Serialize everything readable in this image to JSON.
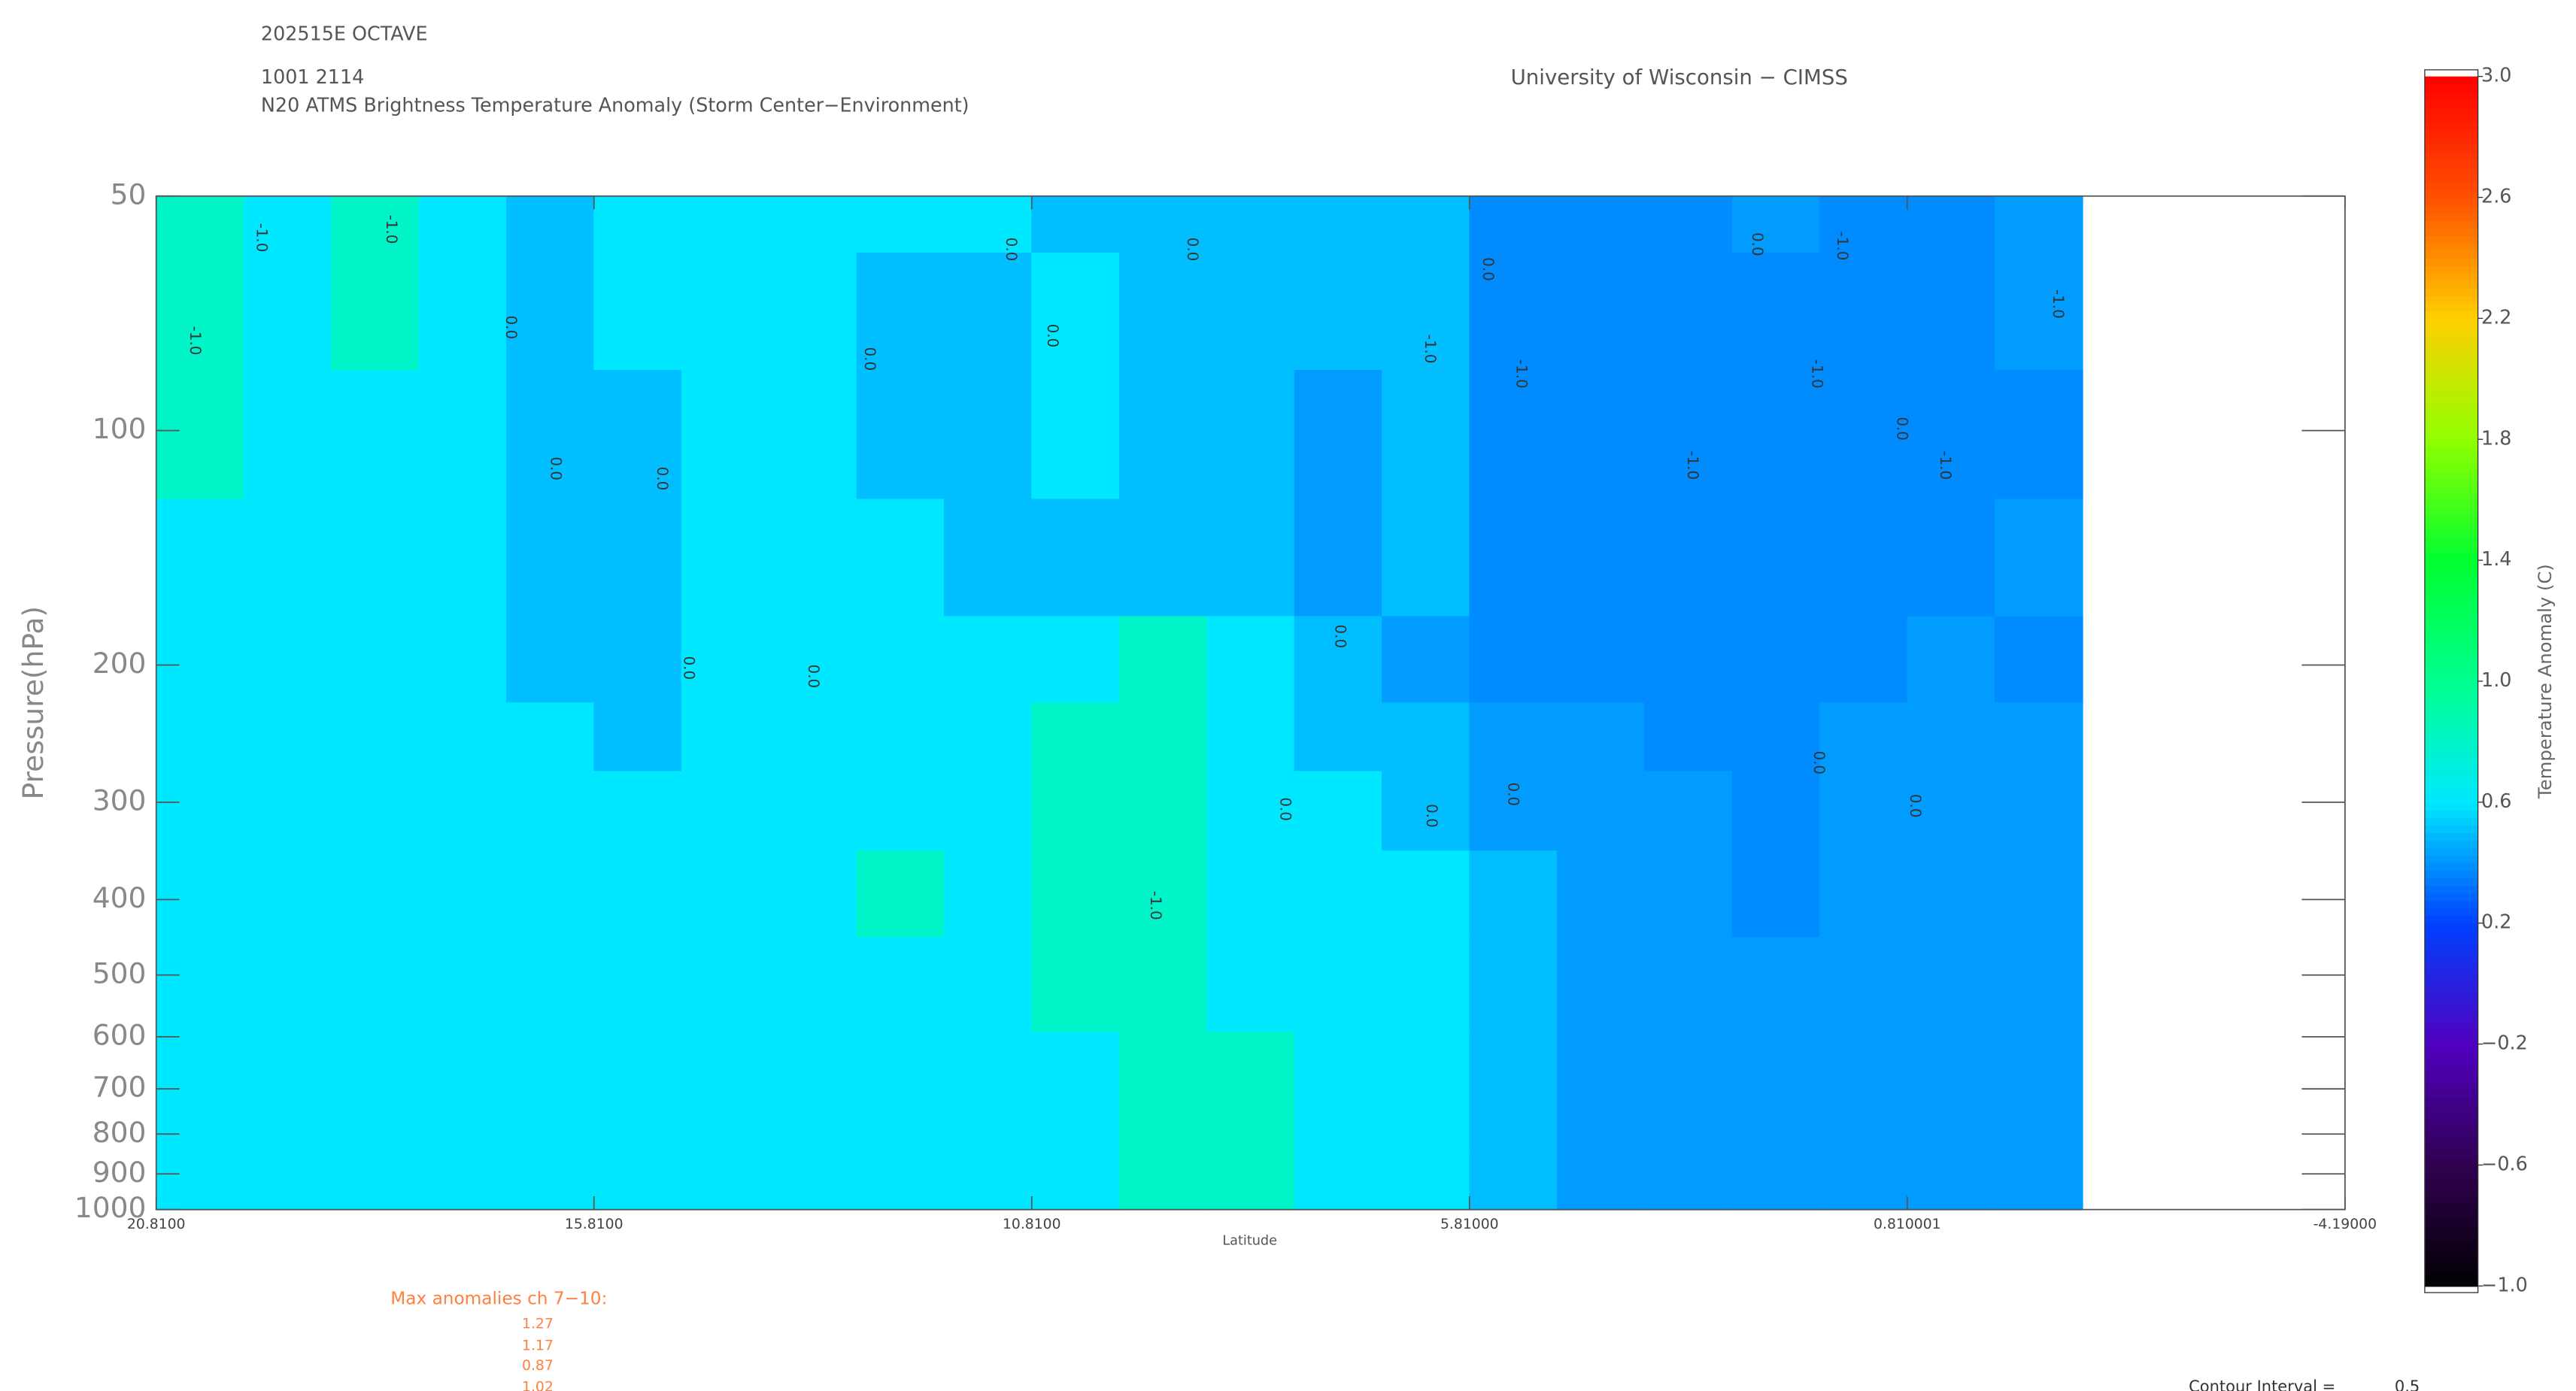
{
  "chart_data": {
    "type": "contour",
    "header_lines": [
      "202515E OCTAVE",
      "1001 2114"
    ],
    "title": "N20 ATMS Brightness Temperature Anomaly (Storm Center−Environment)",
    "credit": "University of Wisconsin − CIMSS",
    "x_label": "Latitude",
    "y_label": "Pressure(hPa)",
    "xlim": [
      20.81,
      -4.19
    ],
    "xticks": [
      {
        "value": 20.81,
        "label": "20.8100"
      },
      {
        "value": 15.81,
        "label": "15.8100"
      },
      {
        "value": 10.81,
        "label": "10.8100"
      },
      {
        "value": 5.81,
        "label": "5.81000"
      },
      {
        "value": 0.810001,
        "label": "0.810001"
      },
      {
        "value": -4.19,
        "label": "-4.19000"
      }
    ],
    "ylim": [
      1000,
      50
    ],
    "y_log": true,
    "yticks": [
      50,
      100,
      200,
      300,
      400,
      500,
      600,
      700,
      800,
      900,
      1000
    ],
    "field": {
      "x": [
        20.31,
        19.31,
        18.31,
        17.31,
        16.31,
        15.31,
        14.31,
        13.31,
        12.31,
        11.31,
        10.31,
        9.31,
        8.31,
        7.31,
        6.31,
        5.31,
        4.31,
        3.31,
        2.31,
        1.31,
        0.31,
        -0.69
      ],
      "levels": [
        50,
        70,
        100,
        150,
        200,
        250,
        300,
        400,
        500,
        700,
        1000
      ],
      "z": [
        [
          0.8,
          0.6,
          0.8,
          0.6,
          0.5,
          0.6,
          0.6,
          0.6,
          0.6,
          0.6,
          0.5,
          0.5,
          0.5,
          0.5,
          0.5,
          0.38,
          0.38,
          0.38,
          0.42,
          0.38,
          0.38,
          0.42
        ],
        [
          0.8,
          0.6,
          0.8,
          0.6,
          0.5,
          0.6,
          0.6,
          0.6,
          0.5,
          0.5,
          0.6,
          0.5,
          0.5,
          0.5,
          0.5,
          0.38,
          0.38,
          0.38,
          0.38,
          0.38,
          0.38,
          0.42
        ],
        [
          0.8,
          0.6,
          0.6,
          0.6,
          0.5,
          0.5,
          0.6,
          0.6,
          0.5,
          0.5,
          0.6,
          0.5,
          0.5,
          0.42,
          0.5,
          0.38,
          0.38,
          0.38,
          0.38,
          0.38,
          0.38,
          0.38
        ],
        [
          0.6,
          0.6,
          0.6,
          0.6,
          0.5,
          0.5,
          0.6,
          0.6,
          0.6,
          0.5,
          0.5,
          0.5,
          0.5,
          0.42,
          0.5,
          0.38,
          0.38,
          0.38,
          0.38,
          0.38,
          0.38,
          0.42
        ],
        [
          0.6,
          0.6,
          0.6,
          0.6,
          0.5,
          0.5,
          0.6,
          0.6,
          0.6,
          0.6,
          0.6,
          0.8,
          0.6,
          0.5,
          0.42,
          0.38,
          0.38,
          0.38,
          0.38,
          0.38,
          0.42,
          0.38
        ],
        [
          0.6,
          0.6,
          0.6,
          0.6,
          0.6,
          0.5,
          0.6,
          0.6,
          0.6,
          0.6,
          0.8,
          0.8,
          0.6,
          0.5,
          0.5,
          0.42,
          0.42,
          0.38,
          0.38,
          0.42,
          0.42,
          0.42
        ],
        [
          0.6,
          0.6,
          0.6,
          0.6,
          0.6,
          0.6,
          0.6,
          0.6,
          0.6,
          0.6,
          0.8,
          0.8,
          0.6,
          0.6,
          0.5,
          0.42,
          0.42,
          0.42,
          0.38,
          0.42,
          0.42,
          0.42
        ],
        [
          0.6,
          0.6,
          0.6,
          0.6,
          0.6,
          0.6,
          0.6,
          0.6,
          0.8,
          0.6,
          0.8,
          0.8,
          0.6,
          0.6,
          0.6,
          0.5,
          0.42,
          0.42,
          0.38,
          0.42,
          0.42,
          0.42
        ],
        [
          0.6,
          0.6,
          0.6,
          0.6,
          0.6,
          0.6,
          0.6,
          0.6,
          0.6,
          0.6,
          0.8,
          0.8,
          0.6,
          0.6,
          0.6,
          0.5,
          0.42,
          0.42,
          0.42,
          0.42,
          0.42,
          0.42
        ],
        [
          0.6,
          0.6,
          0.6,
          0.6,
          0.6,
          0.6,
          0.6,
          0.6,
          0.6,
          0.6,
          0.6,
          0.8,
          0.8,
          0.6,
          0.6,
          0.5,
          0.42,
          0.42,
          0.42,
          0.42,
          0.42,
          0.42
        ],
        [
          0.6,
          0.6,
          0.6,
          0.6,
          0.6,
          0.6,
          0.6,
          0.6,
          0.6,
          0.6,
          0.6,
          0.8,
          0.8,
          0.6,
          0.6,
          0.5,
          0.42,
          0.42,
          0.42,
          0.42,
          0.42,
          0.42
        ]
      ]
    },
    "contour_labels": [
      "-1.0",
      "-1.0",
      "-1.0",
      "-1.0",
      "-1.0",
      "-1.0",
      "-1.0",
      "-1.0",
      "-1.0",
      "-1.0",
      "-1.0",
      "0.0",
      "0.0",
      "0.0",
      "0.0",
      "0.0",
      "0.0",
      "0.0",
      "0.0",
      "0.0",
      "0.0",
      "0.0",
      "0.0",
      "0.0",
      "0.0",
      "0.0",
      "0.0",
      "0.0",
      "0.0"
    ],
    "colorbar": {
      "label": "Temperature Anomaly (C)",
      "clim": [
        -1.0,
        3.0
      ],
      "colormap": [
        "#000000",
        "#300050",
        "#5000c0",
        "#0040ff",
        "#00e8ff",
        "#00ff90",
        "#00ff30",
        "#90ff00",
        "#ffd000",
        "#ff5000",
        "#ff0000"
      ],
      "ticks": [
        {
          "value": 3.0,
          "label": "3.0"
        },
        {
          "value": 2.6,
          "label": "2.6"
        },
        {
          "value": 2.2,
          "label": "2.2"
        },
        {
          "value": 1.8,
          "label": "1.8"
        },
        {
          "value": 1.4,
          "label": "1.4"
        },
        {
          "value": 1.0,
          "label": "1.0"
        },
        {
          "value": 0.6,
          "label": "0.6"
        },
        {
          "value": 0.2,
          "label": "0.2"
        },
        {
          "value": -0.2,
          "label": "−0.2"
        },
        {
          "value": -0.6,
          "label": "−0.6"
        },
        {
          "value": -1.0,
          "label": "−1.0"
        }
      ]
    },
    "max_anomalies_label": "Max anomalies ch 7−10:",
    "max_anomalies": [
      1.27,
      1.17,
      0.87,
      1.02
    ],
    "contour_interval_label": "Contour Interval =",
    "contour_interval": 0.5
  }
}
